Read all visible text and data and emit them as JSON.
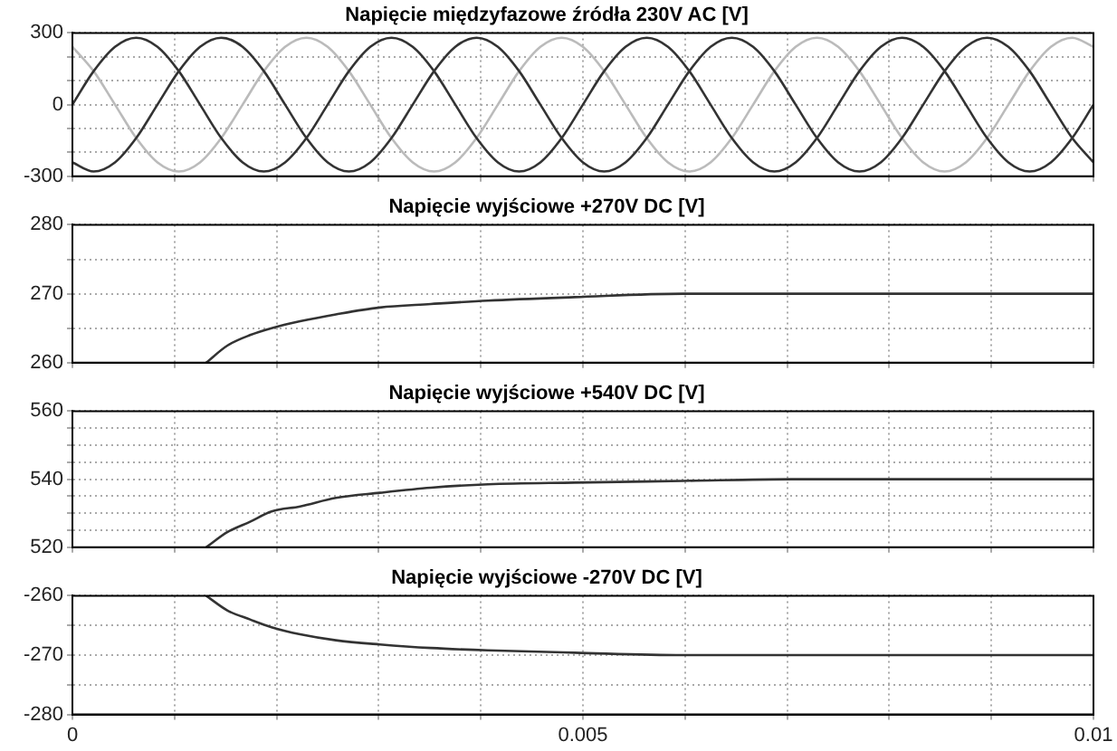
{
  "chart_data": [
    {
      "type": "line",
      "title": "Napięcie międzyfazowe źródła 230V AC [V]",
      "x": [
        0,
        0.000208,
        0.000417,
        0.000625,
        0.000833,
        0.001042,
        0.00125,
        0.001458,
        0.001667,
        0.001875,
        0.002083,
        0.002292,
        0.0025,
        0.002708,
        0.002917,
        0.003125,
        0.003333,
        0.003542,
        0.00375,
        0.003958,
        0.004167,
        0.004375,
        0.004583,
        0.004792,
        0.005,
        0.005208,
        0.005417,
        0.005625,
        0.005833,
        0.006042,
        0.00625,
        0.006458,
        0.006667,
        0.006875,
        0.007083,
        0.007292,
        0.0075,
        0.007708,
        0.007917,
        0.008125,
        0.008333,
        0.008542,
        0.00875,
        0.008958,
        0.009167,
        0.009375,
        0.009583,
        0.009792,
        0.01
      ],
      "series": [
        {
          "color": "#333333",
          "values": [
            0,
            140,
            242,
            280,
            242,
            140,
            0,
            -140,
            -242,
            -280,
            -242,
            -140,
            0,
            140,
            242,
            280,
            242,
            140,
            0,
            -140,
            -242,
            -280,
            -242,
            -140,
            0,
            140,
            242,
            280,
            242,
            140,
            0,
            -140,
            -242,
            -280,
            -242,
            -140,
            0,
            140,
            242,
            280,
            242,
            140,
            0,
            -140,
            -242,
            -280,
            -242,
            -140,
            0
          ]
        },
        {
          "color": "#333333",
          "values": [
            -242,
            -280,
            -242,
            -140,
            0,
            140,
            242,
            280,
            242,
            140,
            0,
            -140,
            -242,
            -280,
            -242,
            -140,
            0,
            140,
            242,
            280,
            242,
            140,
            0,
            -140,
            -242,
            -280,
            -242,
            -140,
            0,
            140,
            242,
            280,
            242,
            140,
            0,
            -140,
            -242,
            -280,
            -242,
            -140,
            0,
            140,
            242,
            280,
            242,
            140,
            0,
            -140,
            -242
          ]
        },
        {
          "color": "#bbbbbb",
          "values": [
            242,
            140,
            0,
            -140,
            -242,
            -280,
            -242,
            -140,
            0,
            140,
            242,
            280,
            242,
            140,
            0,
            -140,
            -242,
            -280,
            -242,
            -140,
            0,
            140,
            242,
            280,
            242,
            140,
            0,
            -140,
            -242,
            -280,
            -242,
            -140,
            0,
            140,
            242,
            280,
            242,
            140,
            0,
            -140,
            -242,
            -280,
            -242,
            -140,
            0,
            140,
            242,
            280,
            242
          ]
        }
      ],
      "xlim": [
        0,
        0.01
      ],
      "xticks": [
        0,
        {
          "value": 0.001,
          "label": null
        },
        {
          "value": 0.002,
          "label": null
        },
        {
          "value": 0.003,
          "label": null
        },
        {
          "value": 0.004,
          "label": null
        },
        0.005,
        {
          "value": 0.006,
          "label": null
        },
        {
          "value": 0.007,
          "label": null
        },
        {
          "value": 0.008,
          "label": null
        },
        {
          "value": 0.009,
          "label": null
        },
        0.01
      ],
      "ylim": [
        -300,
        300
      ],
      "yticks": [
        -300,
        {
          "value": -200,
          "label": null
        },
        {
          "value": -100,
          "label": null
        },
        0,
        {
          "value": 100,
          "label": null
        },
        {
          "value": 200,
          "label": null
        },
        300
      ],
      "grid": true,
      "tick_labels": "y",
      "marker": "none",
      "line_style": "solid"
    },
    {
      "type": "line",
      "title": "Napięcie wyjściowe +270V DC [V]",
      "x": [
        0.00131,
        0.00152,
        0.00174,
        0.00195,
        0.00223,
        0.00258,
        0.00301,
        0.00351,
        0.00407,
        0.00492,
        0.00598,
        0.00705,
        0.01
      ],
      "series": [
        {
          "color": "#333333",
          "values": [
            260,
            262.5,
            264,
            265,
            266,
            267,
            268,
            268.5,
            269,
            269.5,
            270,
            270,
            270
          ]
        }
      ],
      "xlim": [
        0,
        0.01
      ],
      "xticks": [
        0,
        {
          "value": 0.001,
          "label": null
        },
        {
          "value": 0.002,
          "label": null
        },
        {
          "value": 0.003,
          "label": null
        },
        {
          "value": 0.004,
          "label": null
        },
        0.005,
        {
          "value": 0.006,
          "label": null
        },
        {
          "value": 0.007,
          "label": null
        },
        {
          "value": 0.008,
          "label": null
        },
        {
          "value": 0.009,
          "label": null
        },
        0.01
      ],
      "ylim": [
        260,
        280
      ],
      "yticks": [
        260,
        {
          "value": 265,
          "label": null
        },
        270,
        {
          "value": 275,
          "label": null
        },
        280
      ],
      "grid": true,
      "tick_labels": "y",
      "marker": "none",
      "line_style": "solid"
    },
    {
      "type": "line",
      "title": "Napięcie wyjściowe +540V DC [V]",
      "x": [
        0.00131,
        0.00152,
        0.00174,
        0.00195,
        0.00223,
        0.00258,
        0.00301,
        0.00351,
        0.00407,
        0.00492,
        0.00598,
        0.00705,
        0.01
      ],
      "series": [
        {
          "color": "#333333",
          "values": [
            520,
            524.5,
            527.5,
            530.5,
            532,
            534.5,
            536,
            537.5,
            538.5,
            539,
            539.5,
            540,
            540
          ]
        }
      ],
      "xlim": [
        0,
        0.01
      ],
      "xticks": [
        0,
        {
          "value": 0.001,
          "label": null
        },
        {
          "value": 0.002,
          "label": null
        },
        {
          "value": 0.003,
          "label": null
        },
        {
          "value": 0.004,
          "label": null
        },
        0.005,
        {
          "value": 0.006,
          "label": null
        },
        {
          "value": 0.007,
          "label": null
        },
        {
          "value": 0.008,
          "label": null
        },
        {
          "value": 0.009,
          "label": null
        },
        0.01
      ],
      "ylim": [
        520,
        560
      ],
      "yticks": [
        520,
        {
          "value": 525,
          "label": null
        },
        {
          "value": 530,
          "label": null
        },
        {
          "value": 535,
          "label": null
        },
        540,
        {
          "value": 545,
          "label": null
        },
        {
          "value": 550,
          "label": null
        },
        {
          "value": 555,
          "label": null
        },
        560
      ],
      "grid": true,
      "tick_labels": "y",
      "marker": "none",
      "line_style": "solid"
    },
    {
      "type": "line",
      "title": "Napięcie wyjściowe -270V DC [V]",
      "x": [
        0.00131,
        0.00152,
        0.00174,
        0.00195,
        0.00223,
        0.00258,
        0.00301,
        0.00351,
        0.00407,
        0.00492,
        0.00598,
        0.00705,
        0.01
      ],
      "series": [
        {
          "color": "#333333",
          "values": [
            -260,
            -262.5,
            -264,
            -265.3,
            -266.5,
            -267.5,
            -268.2,
            -268.8,
            -269.2,
            -269.6,
            -270,
            -270,
            -270
          ]
        }
      ],
      "xlim": [
        0,
        0.01
      ],
      "xticks": [
        0,
        {
          "value": 0.001,
          "label": null
        },
        {
          "value": 0.002,
          "label": null
        },
        {
          "value": 0.003,
          "label": null
        },
        {
          "value": 0.004,
          "label": null
        },
        0.005,
        {
          "value": 0.006,
          "label": null
        },
        {
          "value": 0.007,
          "label": null
        },
        {
          "value": 0.008,
          "label": null
        },
        {
          "value": 0.009,
          "label": null
        },
        0.01
      ],
      "ylim": [
        -280,
        -260
      ],
      "yticks": [
        -280,
        {
          "value": -275,
          "label": null
        },
        -270,
        {
          "value": -265,
          "label": null
        },
        -260
      ],
      "grid": true,
      "marker": "none",
      "line_style": "solid"
    }
  ]
}
